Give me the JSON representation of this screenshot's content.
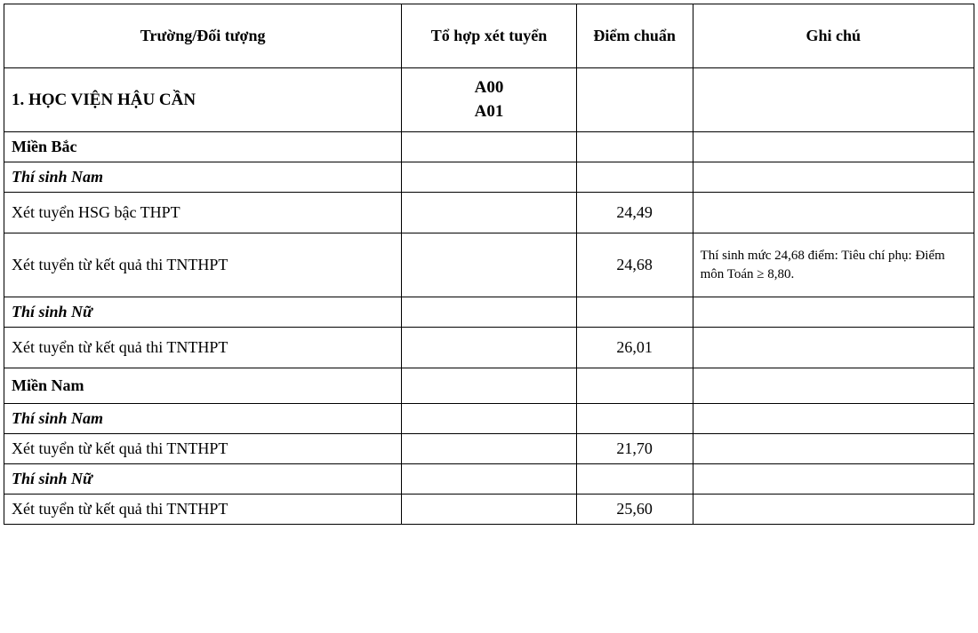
{
  "headers": {
    "school": "Trường/Đối tượng",
    "combo": "Tổ hợp xét tuyển",
    "score": "Điểm chuẩn",
    "note": "Ghi chú"
  },
  "rows": [
    {
      "type": "header",
      "school": "1. HỌC VIỆN HẬU CẦN",
      "combo_line1": "A00",
      "combo_line2": "A01",
      "score": "",
      "note": ""
    },
    {
      "type": "section",
      "school": "Miền Bắc",
      "combo": "",
      "score": "",
      "note": ""
    },
    {
      "type": "candidate",
      "school": "Thí sinh Nam",
      "combo": "",
      "score": "",
      "note": ""
    },
    {
      "type": "data",
      "school": "Xét tuyển HSG bậc THPT",
      "combo": "",
      "score": "24,49",
      "note": ""
    },
    {
      "type": "data_tall",
      "school": "Xét tuyển từ kết quả thi TNTHPT",
      "combo": "",
      "score": "24,68",
      "note": "Thí sinh mức 24,68 điểm: Tiêu chí phụ: Điểm môn Toán ≥ 8,80."
    },
    {
      "type": "candidate",
      "school": "Thí sinh Nữ",
      "combo": "",
      "score": "",
      "note": ""
    },
    {
      "type": "data",
      "school": "Xét tuyển từ kết quả thi TNTHPT",
      "combo": "",
      "score": "26,01",
      "note": ""
    },
    {
      "type": "section_med",
      "school": "Miền Nam",
      "combo": "",
      "score": "",
      "note": ""
    },
    {
      "type": "candidate",
      "school": "Thí sinh Nam",
      "combo": "",
      "score": "",
      "note": ""
    },
    {
      "type": "data_short",
      "school": "Xét tuyển từ kết quả thi TNTHPT",
      "combo": "",
      "score": "21,70",
      "note": ""
    },
    {
      "type": "candidate",
      "school": "Thí sinh Nữ",
      "combo": "",
      "score": "",
      "note": ""
    },
    {
      "type": "data_short",
      "school": "Xét tuyển từ kết quả thi TNTHPT",
      "combo": "",
      "score": "25,60",
      "note": ""
    }
  ]
}
